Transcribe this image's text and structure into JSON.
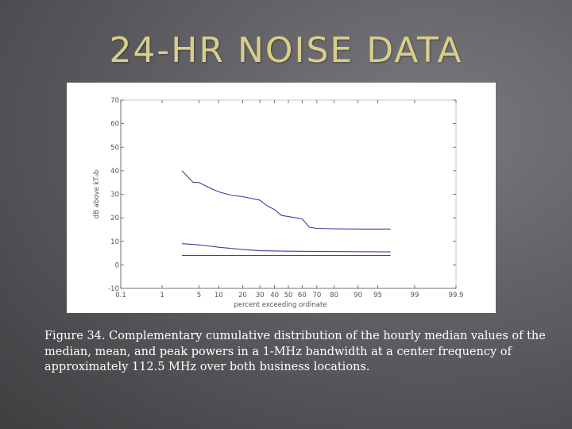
{
  "slide": {
    "title": "24-HR NOISE DATA",
    "caption": "Figure 34. Complementary cumulative distribution of the hourly median values of the median, mean, and peak powers in a 1-MHz bandwidth at a center frequency of approximately 112.5 MHz over both business locations."
  },
  "colors": {
    "title": "#d9cd8a",
    "series": "#3a3fa0",
    "axis": "#555555"
  },
  "chart_data": {
    "type": "line",
    "title": "",
    "xlabel": "percent exceeding ordinate",
    "ylabel": "dB above kT₀b",
    "x_scale": "probability",
    "xlim": [
      0.1,
      99.9
    ],
    "ylim": [
      -10,
      70
    ],
    "x_ticks": [
      0.1,
      1,
      5,
      10,
      20,
      30,
      40,
      50,
      60,
      70,
      80,
      90,
      95,
      99,
      99.9
    ],
    "x_tick_labels": [
      "0.1",
      "1",
      "5",
      "10",
      "20",
      "30",
      "40",
      "50",
      "60",
      "70",
      "80",
      "90",
      "95",
      "99",
      "99.9"
    ],
    "y_ticks": [
      -10,
      0,
      10,
      20,
      30,
      40,
      50,
      60,
      70
    ],
    "y_tick_labels": [
      "-10",
      "0",
      "10",
      "20",
      "30",
      "40",
      "50",
      "60",
      "70"
    ],
    "grid": false,
    "series": [
      {
        "x": [
          2.5,
          4,
          5,
          7,
          10,
          15,
          20,
          30,
          35,
          40,
          45,
          50,
          55,
          60,
          65,
          70,
          80,
          90,
          95,
          97
        ],
        "values": [
          40,
          35,
          35,
          33,
          31,
          29.5,
          29,
          27.5,
          25,
          23.5,
          21,
          20.5,
          20,
          19.5,
          16,
          15.5,
          15.3,
          15.2,
          15.2,
          15.2
        ]
      },
      {
        "x": [
          2.5,
          5,
          10,
          20,
          30,
          50,
          70,
          90,
          97
        ],
        "values": [
          9,
          8.5,
          7.5,
          6.5,
          6,
          5.8,
          5.7,
          5.6,
          5.5
        ]
      },
      {
        "x": [
          2.5,
          10,
          30,
          50,
          70,
          90,
          97
        ],
        "values": [
          4,
          4,
          4,
          4,
          4,
          4,
          4
        ]
      }
    ]
  }
}
